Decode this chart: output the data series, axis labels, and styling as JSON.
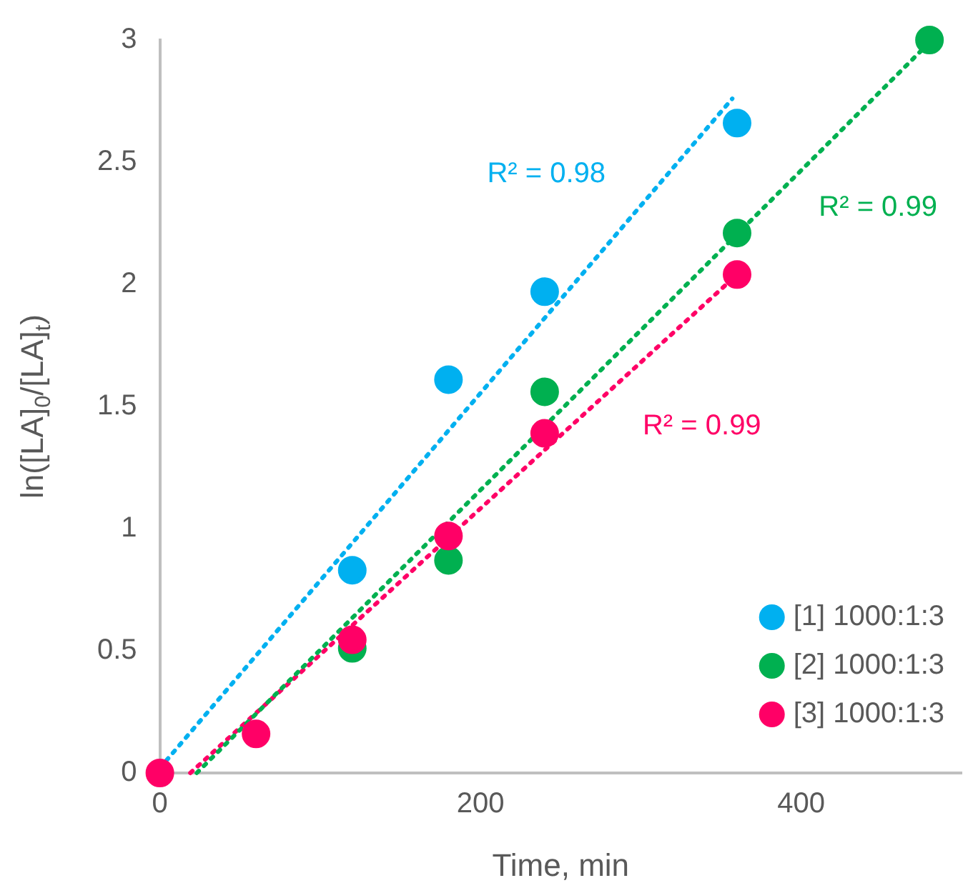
{
  "chart_data": {
    "type": "scatter",
    "xlabel": "Time, min",
    "ylabel": "ln([LA]$_{0}$/[LA]$_{t}$)",
    "xlim": [
      0,
      500
    ],
    "xticks": [
      0,
      200,
      400
    ],
    "ylim": [
      0,
      3
    ],
    "yticks": [
      0,
      0.5,
      1,
      1.5,
      2,
      2.5,
      3
    ],
    "grid": false,
    "legend": "bottom right",
    "marker": "circle",
    "series": [
      {
        "name": "[1] 1000:1:3",
        "color": "#00b0f0",
        "x": [
          120,
          180,
          240,
          360
        ],
        "values": [
          0.83,
          1.61,
          1.97,
          2.66
        ]
      },
      {
        "name": "[2] 1000:1:3",
        "color": "#00b050",
        "x": [
          120,
          180,
          240,
          360,
          480
        ],
        "values": [
          0.51,
          0.87,
          1.56,
          2.21,
          3.0
        ]
      },
      {
        "name": "[3] 1000:1:3",
        "color": "#ff0066",
        "x": [
          0,
          60,
          120,
          180,
          240,
          360
        ],
        "values": [
          0,
          0.16,
          0.545,
          0.97,
          1.39,
          2.04
        ]
      },
      {
        "type": "line",
        "color": "#00b0f0",
        "x": [
          0,
          357
        ],
        "values": [
          0.02,
          2.76
        ],
        "marker": "none",
        "line_style": "dotted"
      },
      {
        "type": "line",
        "color": "#00b050",
        "x": [
          23,
          480
        ],
        "values": [
          0,
          2.99
        ],
        "marker": "none",
        "line_style": "dotted"
      },
      {
        "type": "line",
        "color": "#ff0066",
        "x": [
          19,
          355
        ],
        "values": [
          0,
          2.01
        ],
        "marker": "none",
        "line_style": "dotted"
      }
    ],
    "annotations": [
      "R² = 0.98",
      "R² = 0.99",
      "R² = 0.99"
    ]
  }
}
